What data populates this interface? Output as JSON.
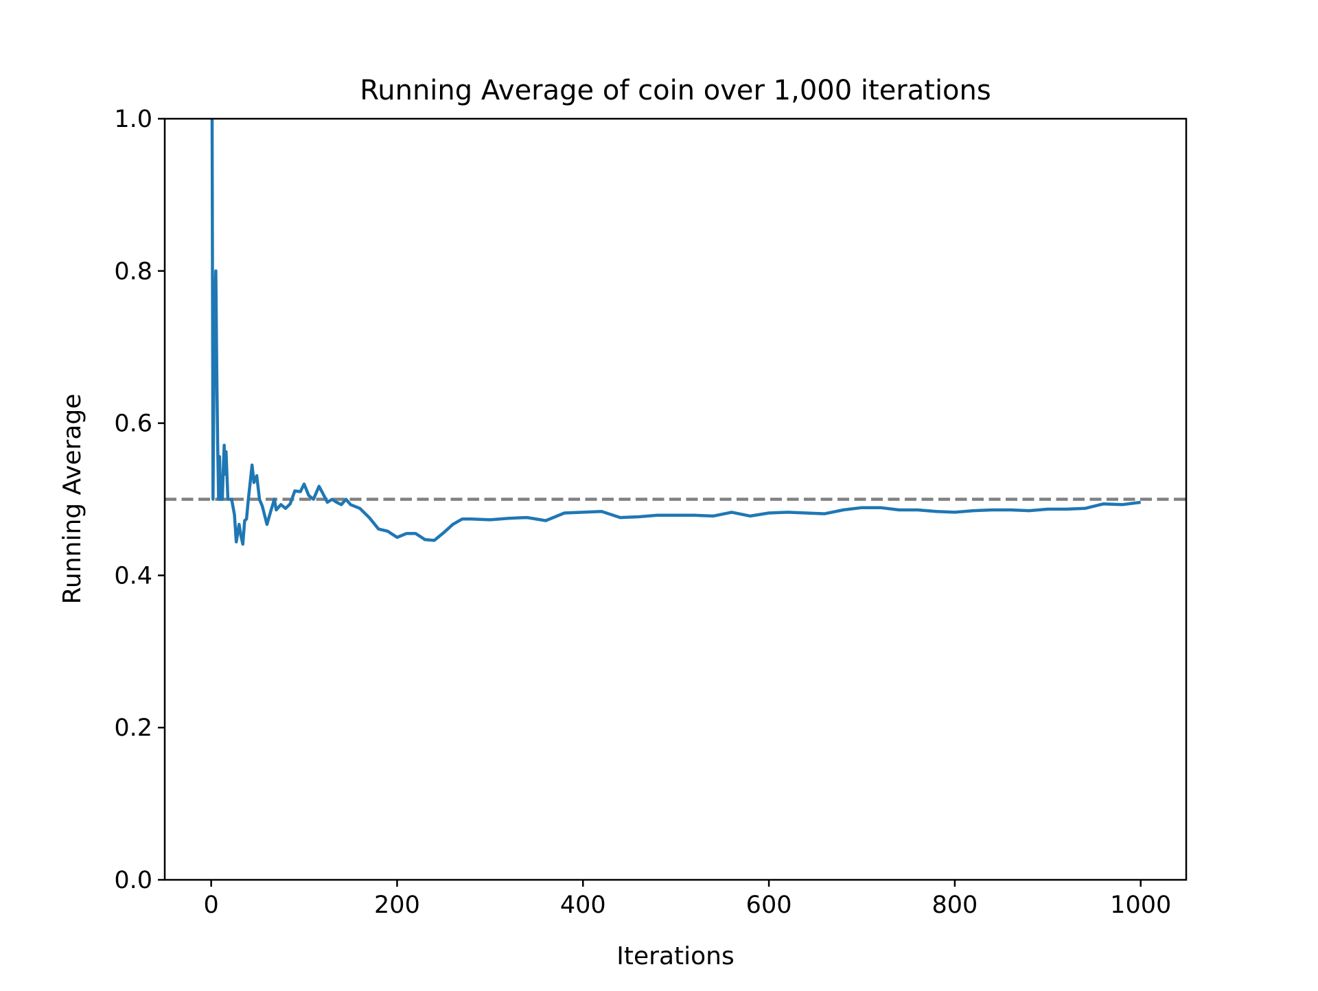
{
  "chart_data": {
    "type": "line",
    "title": "Running Average of coin over 1,000 iterations",
    "xlabel": "Iterations",
    "ylabel": "Running Average",
    "xlim": [
      -49.95,
      1048.95
    ],
    "ylim": [
      0.0,
      1.0
    ],
    "xticks": [
      0,
      200,
      400,
      600,
      800,
      1000
    ],
    "xtick_labels": [
      "0",
      "200",
      "400",
      "600",
      "800",
      "1000"
    ],
    "yticks": [
      0.0,
      0.2,
      0.4,
      0.6,
      0.8,
      1.0
    ],
    "ytick_labels": [
      "0.0",
      "0.2",
      "0.4",
      "0.6",
      "0.8",
      "1.0"
    ],
    "grid": false,
    "reference_line": {
      "y": 0.5,
      "style": "dashed",
      "color": "#808080"
    },
    "series": [
      {
        "color": "#1f77b4",
        "x": [
          1,
          2,
          3,
          4,
          5,
          6,
          7,
          8,
          9,
          10,
          12,
          13,
          14,
          15,
          16,
          18,
          20,
          22,
          25,
          27,
          30,
          32,
          34,
          36,
          38,
          40,
          44,
          46,
          49,
          52,
          55,
          60,
          64,
          68,
          70,
          75,
          80,
          85,
          90,
          96,
          100,
          105,
          110,
          116,
          120,
          125,
          130,
          135,
          140,
          145,
          150,
          160,
          170,
          180,
          190,
          200,
          210,
          220,
          230,
          240,
          250,
          260,
          270,
          280,
          300,
          320,
          340,
          360,
          380,
          400,
          420,
          440,
          460,
          480,
          500,
          520,
          540,
          560,
          580,
          600,
          620,
          640,
          660,
          680,
          700,
          720,
          740,
          760,
          780,
          800,
          820,
          840,
          860,
          880,
          900,
          920,
          940,
          960,
          980,
          1000
        ],
        "y": [
          1.0,
          0.5,
          0.667,
          0.75,
          0.8,
          0.667,
          0.571,
          0.5,
          0.556,
          0.5,
          0.5,
          0.538,
          0.571,
          0.533,
          0.5625,
          0.5,
          0.5,
          0.5,
          0.48,
          0.444,
          0.467,
          0.452,
          0.441,
          0.472,
          0.474,
          0.5,
          0.545,
          0.522,
          0.531,
          0.5,
          0.491,
          0.467,
          0.484,
          0.5,
          0.486,
          0.493,
          0.488,
          0.494,
          0.511,
          0.51,
          0.52,
          0.505,
          0.5,
          0.517,
          0.508,
          0.496,
          0.5,
          0.496,
          0.493,
          0.5,
          0.493,
          0.488,
          0.476,
          0.461,
          0.458,
          0.45,
          0.455,
          0.455,
          0.447,
          0.446,
          0.456,
          0.467,
          0.474,
          0.474,
          0.473,
          0.475,
          0.476,
          0.472,
          0.482,
          0.483,
          0.484,
          0.476,
          0.477,
          0.479,
          0.479,
          0.479,
          0.478,
          0.483,
          0.478,
          0.482,
          0.483,
          0.482,
          0.481,
          0.486,
          0.489,
          0.489,
          0.486,
          0.486,
          0.484,
          0.483,
          0.485,
          0.486,
          0.486,
          0.485,
          0.487,
          0.487,
          0.488,
          0.494,
          0.493,
          0.496
        ]
      }
    ]
  }
}
